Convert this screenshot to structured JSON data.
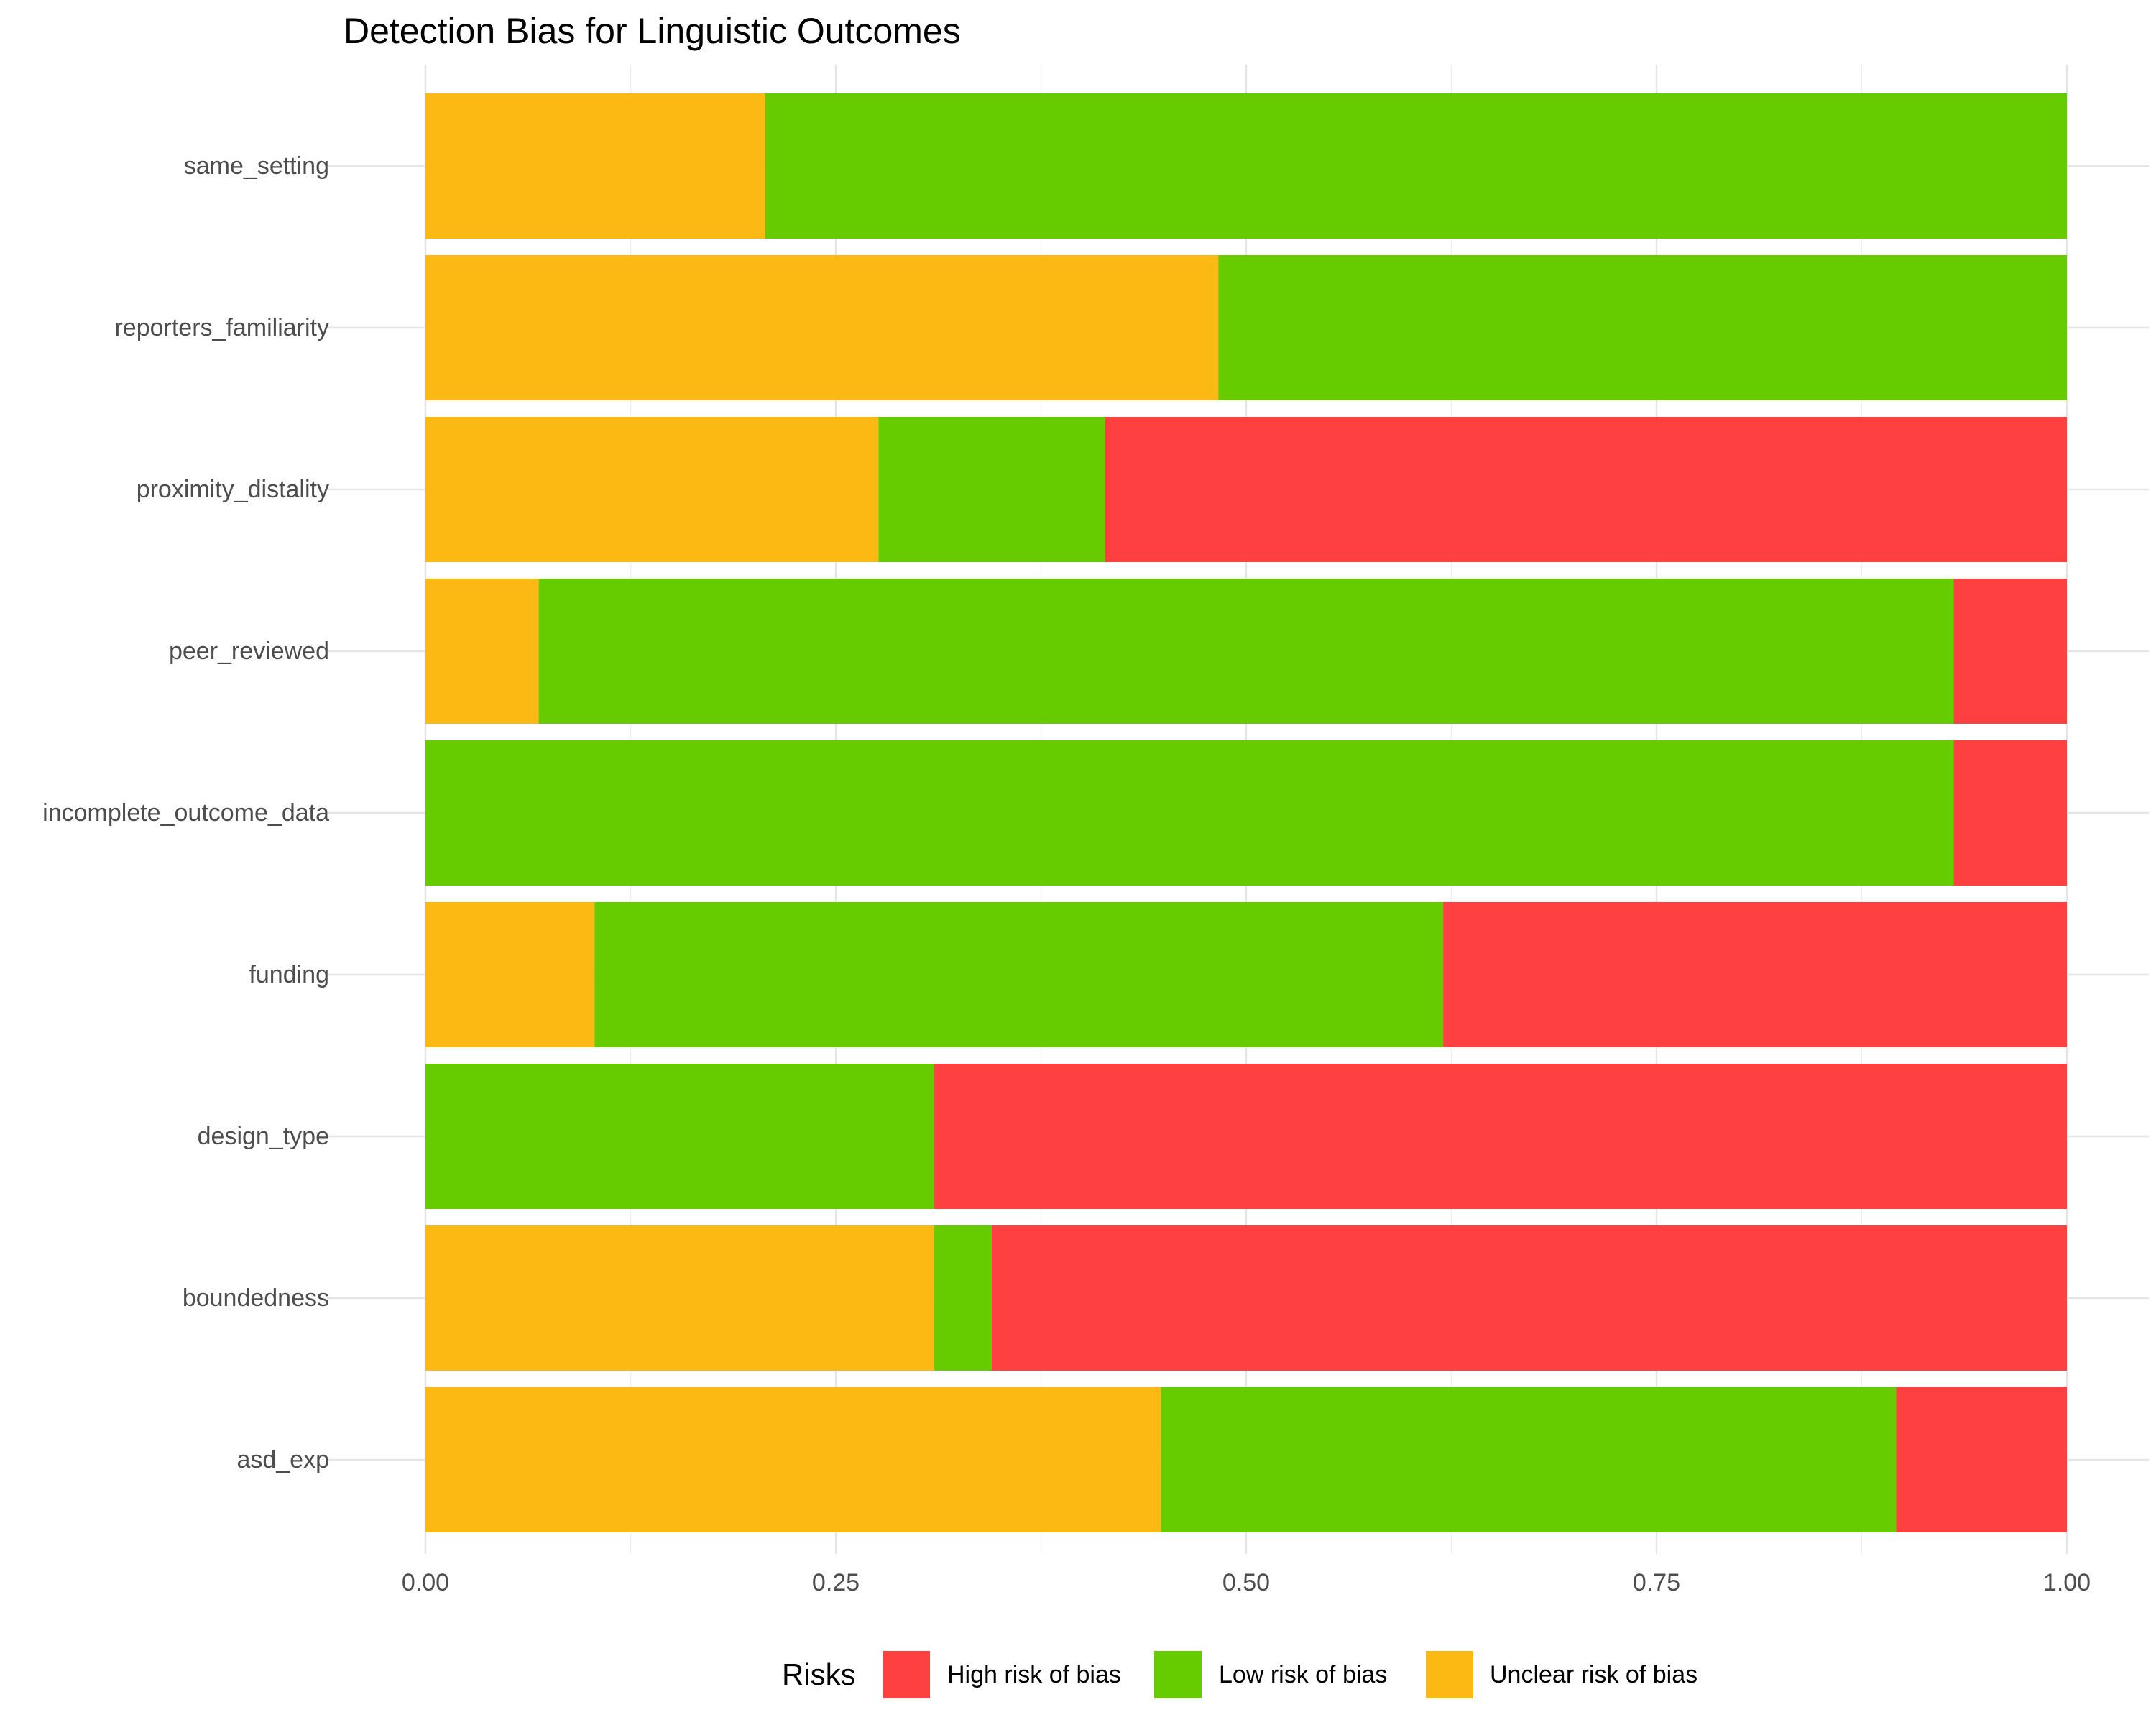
{
  "chart_data": {
    "type": "bar",
    "orientation": "horizontal",
    "stacked": "fill",
    "title": "Detection Bias for Linguistic Outcomes",
    "xlabel": "",
    "ylabel": "",
    "xlim": [
      0,
      1
    ],
    "xticks": [
      "0.00",
      "0.25",
      "0.50",
      "0.75",
      "1.00"
    ],
    "grid": true,
    "legend": {
      "title": "Risks",
      "position": "bottom"
    },
    "categories": [
      "same_setting",
      "reporters_familiarity",
      "proximity_distality",
      "peer_reviewed",
      "incomplete_outcome_data",
      "funding",
      "design_type",
      "boundedness",
      "asd_exp"
    ],
    "series": [
      {
        "name": "Unclear risk of bias",
        "color": "#FDB913",
        "values": [
          0.207,
          0.483,
          0.276,
          0.069,
          0.0,
          0.103,
          0.0,
          0.31,
          0.448
        ]
      },
      {
        "name": "Low risk of bias",
        "color": "#66CC00",
        "values": [
          0.793,
          0.517,
          0.138,
          0.862,
          0.931,
          0.517,
          0.31,
          0.035,
          0.448
        ]
      },
      {
        "name": "High risk of bias",
        "color": "#FF4040",
        "values": [
          0.0,
          0.0,
          0.586,
          0.069,
          0.069,
          0.38,
          0.69,
          0.655,
          0.104
        ]
      }
    ],
    "legend_order": [
      "High risk of bias",
      "Low risk of bias",
      "Unclear risk of bias"
    ]
  }
}
